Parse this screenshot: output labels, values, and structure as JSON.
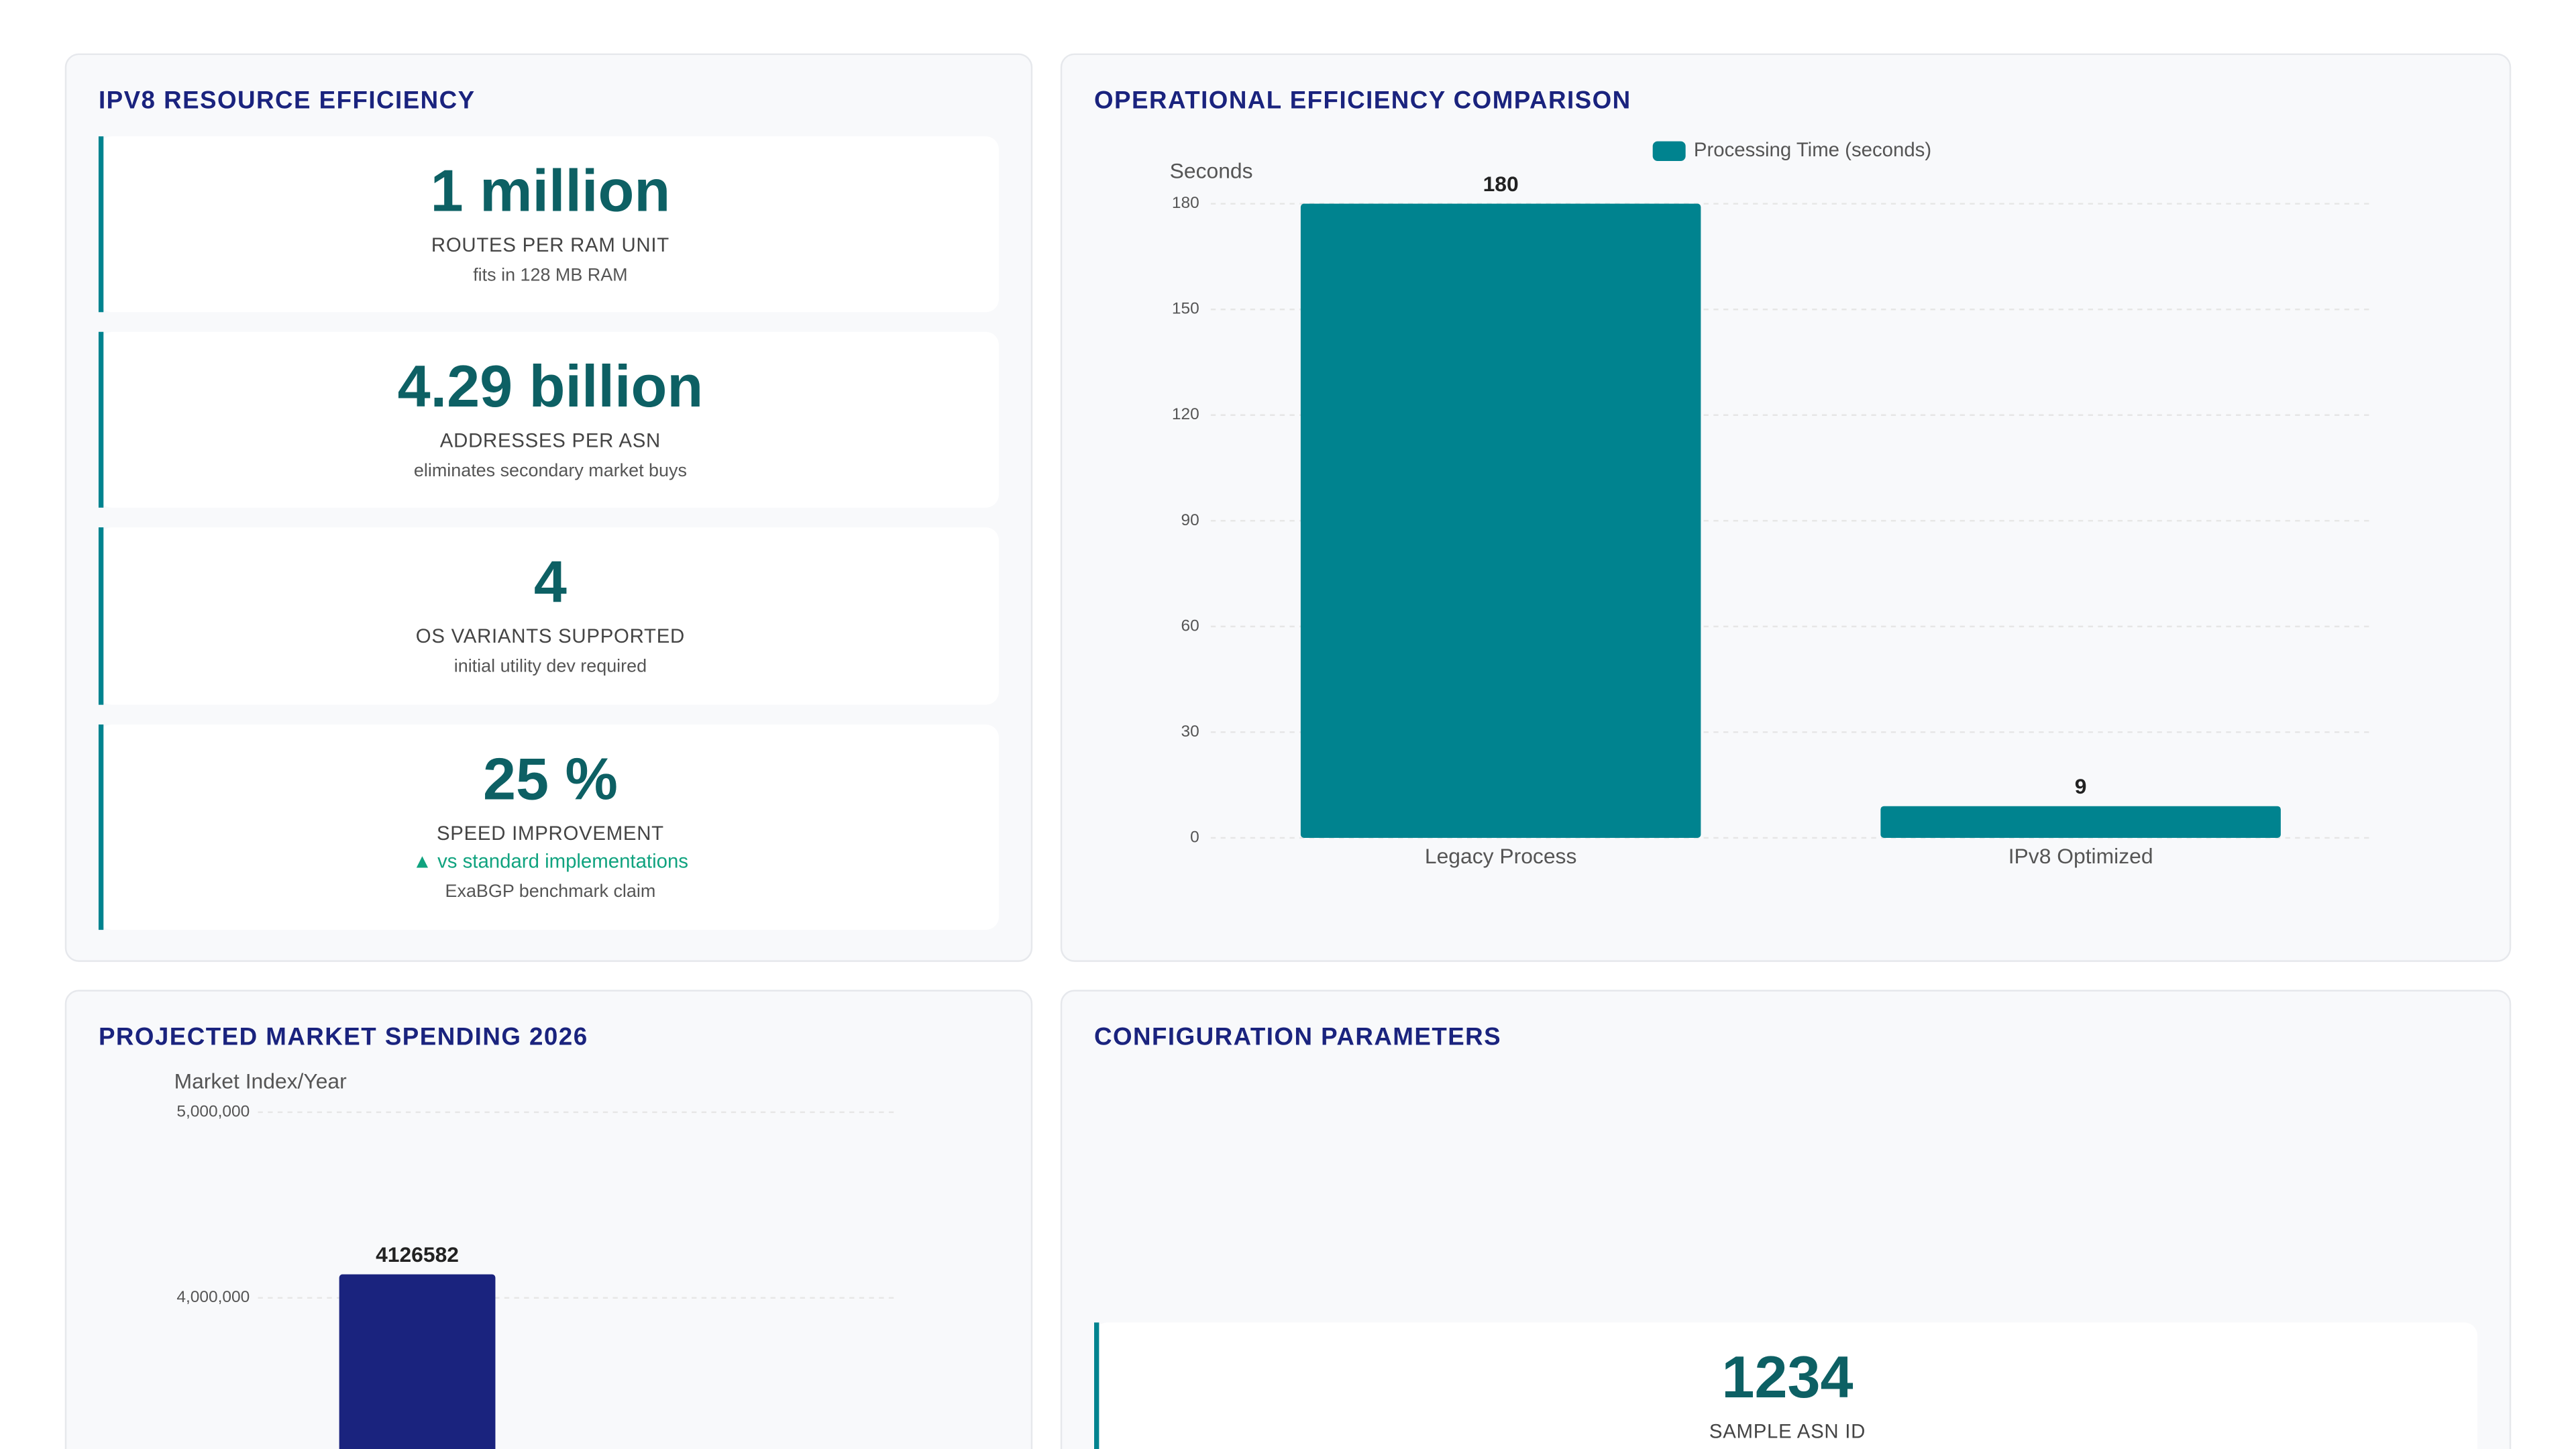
{
  "resource_panel": {
    "title": "IPV8 RESOURCE EFFICIENCY",
    "kpis": [
      {
        "value": "1 million",
        "label": "ROUTES PER RAM UNIT",
        "note": "fits in 128 MB RAM"
      },
      {
        "value": "4.29 billion",
        "label": "ADDRESSES PER ASN",
        "note": "eliminates secondary market buys"
      },
      {
        "value": "4",
        "label": "OS VARIANTS SUPPORTED",
        "note": "initial utility dev required"
      },
      {
        "value": "25 %",
        "label": "SPEED IMPROVEMENT",
        "trend": "▲ vs standard implementations",
        "note": "ExaBGP benchmark claim"
      }
    ]
  },
  "chart_data": [
    {
      "type": "bar",
      "title": "OPERATIONAL EFFICIENCY COMPARISON",
      "y_label": "Seconds",
      "categories": [
        "Legacy Process",
        "IPv8 Optimized"
      ],
      "series": [
        {
          "name": "Processing Time (seconds)",
          "color": "#00838f",
          "values": [
            180,
            9
          ]
        }
      ],
      "ylim": [
        0,
        180
      ],
      "yticks": [
        0,
        30,
        60,
        90,
        120,
        150,
        180
      ],
      "grid": true,
      "legend": "top"
    },
    {
      "type": "bar",
      "title": "PROJECTED MARKET SPENDING 2026",
      "y_label": "Market Index/Year",
      "categories": [
        null,
        null
      ],
      "series": [
        {
          "color": "#1a237e",
          "values": [
            4126582,
            null
          ]
        }
      ],
      "ylim": [
        3000000,
        5000000
      ],
      "yticks": [
        {
          "value": 4000000,
          "label": "4,000,000"
        },
        {
          "value": 5000000,
          "label": "5,000,000"
        }
      ],
      "grid": true
    }
  ],
  "config_panel": {
    "title": "CONFIGURATION PARAMETERS",
    "items": [
      {
        "value": "1234",
        "label": "SAMPLE ASN ID"
      }
    ]
  }
}
